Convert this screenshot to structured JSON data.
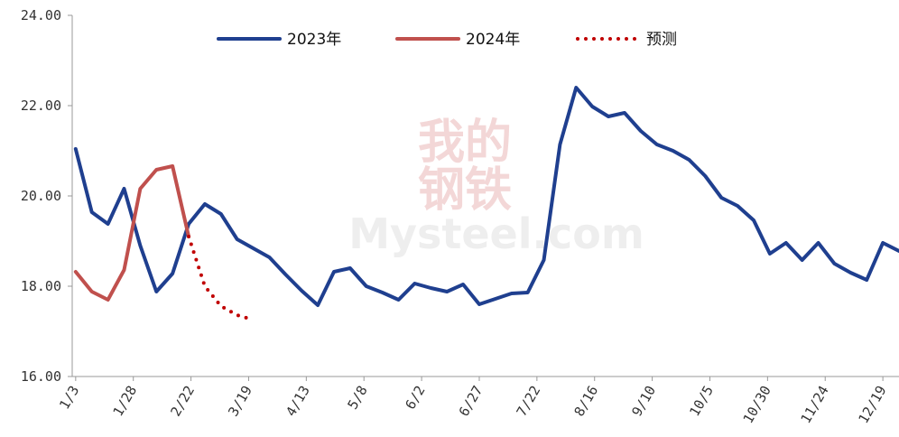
{
  "chart_data": {
    "type": "line",
    "watermark": [
      "我的",
      "钢铁",
      "Mysteel.com"
    ],
    "xlim": [
      -1.5,
      357
    ],
    "xticks": [
      {
        "value": 0,
        "label": "1/3"
      },
      {
        "value": 25,
        "label": "1/28"
      },
      {
        "value": 50,
        "label": "2/22"
      },
      {
        "value": 75,
        "label": "3/19"
      },
      {
        "value": 100,
        "label": "4/13"
      },
      {
        "value": 125,
        "label": "5/8"
      },
      {
        "value": 150,
        "label": "6/2"
      },
      {
        "value": 175,
        "label": "6/27"
      },
      {
        "value": 200,
        "label": "7/22"
      },
      {
        "value": 225,
        "label": "8/16"
      },
      {
        "value": 250,
        "label": "9/10"
      },
      {
        "value": 275,
        "label": "10/5"
      },
      {
        "value": 300,
        "label": "10/30"
      },
      {
        "value": 325,
        "label": "11/24"
      },
      {
        "value": 350,
        "label": "12/19"
      }
    ],
    "ylim": [
      16,
      24
    ],
    "yticks": [
      {
        "value": 16,
        "label": "16.00"
      },
      {
        "value": 18,
        "label": "18.00"
      },
      {
        "value": 20,
        "label": "20.00"
      },
      {
        "value": 22,
        "label": "22.00"
      },
      {
        "value": 24,
        "label": "24.00"
      }
    ],
    "legend": "top",
    "series": [
      {
        "name": "2023年",
        "color": "#1f3f8f",
        "style": "solid",
        "x": [
          0,
          7,
          14,
          21,
          28,
          35,
          42,
          49,
          56,
          63,
          70,
          77,
          84,
          91,
          98,
          105,
          112,
          119,
          126,
          133,
          140,
          147,
          154,
          161,
          168,
          175,
          182,
          189,
          196,
          203,
          210,
          217,
          224,
          231,
          238,
          245,
          252,
          259,
          266,
          273,
          280,
          287,
          294,
          301,
          308,
          315,
          322,
          329,
          336,
          343,
          350,
          357
        ],
        "values": [
          21.04,
          19.64,
          19.38,
          20.16,
          18.9,
          17.88,
          18.28,
          19.38,
          19.82,
          19.6,
          19.04,
          18.84,
          18.64,
          18.26,
          17.9,
          17.58,
          18.32,
          18.4,
          18.0,
          17.86,
          17.7,
          18.06,
          17.96,
          17.88,
          18.04,
          17.6,
          17.72,
          17.84,
          17.86,
          18.58,
          21.14,
          22.4,
          21.98,
          21.76,
          21.84,
          21.44,
          21.14,
          21.0,
          20.8,
          20.44,
          19.96,
          19.78,
          19.46,
          18.72,
          18.96,
          18.58,
          18.96,
          18.5,
          18.3,
          18.14,
          18.96,
          18.78
        ]
      },
      {
        "name": "2024年",
        "color": "#c0504d",
        "style": "solid",
        "x": [
          0,
          7,
          14,
          21,
          28,
          35,
          42,
          49
        ],
        "values": [
          18.32,
          17.88,
          17.7,
          18.36,
          20.16,
          20.58,
          20.66,
          19.1
        ]
      },
      {
        "name": "预测",
        "color": "#c00000",
        "style": "dotted",
        "x": [
          49,
          56,
          63,
          70,
          74
        ],
        "values": [
          19.1,
          18.0,
          17.56,
          17.36,
          17.3
        ]
      }
    ]
  }
}
